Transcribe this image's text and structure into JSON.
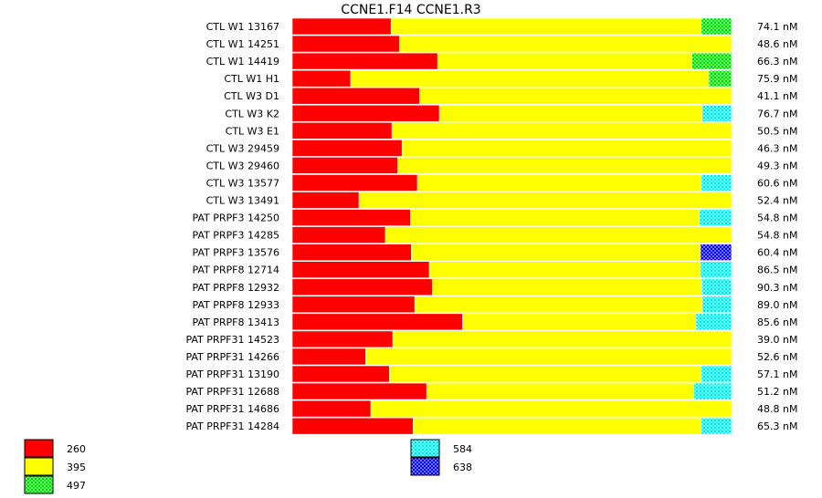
{
  "chart_data": {
    "type": "bar",
    "stacked": true,
    "orientation": "horizontal",
    "normalized": true,
    "title": "CCNE1.F14  CCNE1.R3",
    "xlabel": "",
    "ylabel": "",
    "xlim": [
      0,
      1
    ],
    "categories": [
      "CTL W1 13167",
      "CTL W1 14251",
      "CTL W1 14419",
      "CTL W1 H1",
      "CTL W3 D1",
      "CTL W3 K2",
      "CTL W3 E1",
      "CTL W3 29459",
      "CTL W3 29460",
      "CTL W3 13577",
      "CTL W3 13491",
      "PAT PRPF3 14250",
      "PAT PRPF3 14285",
      "PAT PRPF3 13576",
      "PAT PRPF8 12714",
      "PAT PRPF8 12932",
      "PAT PRPF8 12933",
      "PAT PRPF8 13413",
      "PAT PRPF31 14523",
      "PAT PRPF31 14266",
      "PAT PRPF31 13190",
      "PAT PRPF31 12688",
      "PAT PRPF31 14686",
      "PAT PRPF31 14284"
    ],
    "concentrations": [
      "74.1 nM",
      "48.6 nM",
      "66.3 nM",
      "75.9 nM",
      "41.1 nM",
      "76.7 nM",
      "50.5 nM",
      "46.3 nM",
      "49.3 nM",
      "60.6 nM",
      "52.4 nM",
      "54.8 nM",
      "54.8 nM",
      "60.4 nM",
      "86.5 nM",
      "90.3 nM",
      "89.0 nM",
      "85.6 nM",
      "39.0 nM",
      "52.6 nM",
      "57.1 nM",
      "51.2 nM",
      "48.8 nM",
      "65.3 nM"
    ],
    "series": [
      {
        "name": "260",
        "color": "#ff0000",
        "pattern": "solid",
        "values": [
          0.225,
          0.244,
          0.331,
          0.133,
          0.29,
          0.335,
          0.227,
          0.25,
          0.24,
          0.285,
          0.152,
          0.269,
          0.212,
          0.271,
          0.312,
          0.319,
          0.279,
          0.388,
          0.229,
          0.167,
          0.221,
          0.306,
          0.179,
          0.275
        ]
      },
      {
        "name": "395",
        "color": "#ffff00",
        "pattern": "solid",
        "values": [
          0.706,
          0.756,
          0.579,
          0.815,
          0.71,
          0.598,
          0.773,
          0.75,
          0.76,
          0.646,
          0.848,
          0.658,
          0.788,
          0.658,
          0.617,
          0.613,
          0.654,
          0.531,
          0.771,
          0.833,
          0.71,
          0.608,
          0.821,
          0.656
        ]
      },
      {
        "name": "497",
        "color": "#00ee00",
        "pattern": "checker",
        "values": [
          0.069,
          0,
          0.09,
          0.052,
          0,
          0,
          0,
          0,
          0,
          0,
          0,
          0,
          0,
          0,
          0,
          0,
          0,
          0,
          0,
          0,
          0,
          0,
          0,
          0
        ]
      },
      {
        "name": "584",
        "color": "#00ffff",
        "pattern": "checker",
        "values": [
          0,
          0,
          0,
          0,
          0,
          0.067,
          0,
          0,
          0,
          0.069,
          0,
          0.073,
          0,
          0,
          0.071,
          0.068,
          0.067,
          0.081,
          0,
          0,
          0.069,
          0.086,
          0,
          0.069
        ]
      },
      {
        "name": "638",
        "color": "#0000ff",
        "pattern": "checker",
        "values": [
          0,
          0,
          0,
          0,
          0,
          0,
          0,
          0,
          0,
          0,
          0,
          0,
          0,
          0.071,
          0,
          0,
          0,
          0,
          0,
          0,
          0,
          0,
          0,
          0
        ]
      }
    ],
    "grid": false,
    "legend": "bottom"
  },
  "legend": {
    "items": [
      {
        "label": "260",
        "series": "260"
      },
      {
        "label": "395",
        "series": "395"
      },
      {
        "label": "497",
        "series": "497"
      },
      {
        "label": "584",
        "series": "584"
      },
      {
        "label": "638",
        "series": "638"
      }
    ]
  }
}
